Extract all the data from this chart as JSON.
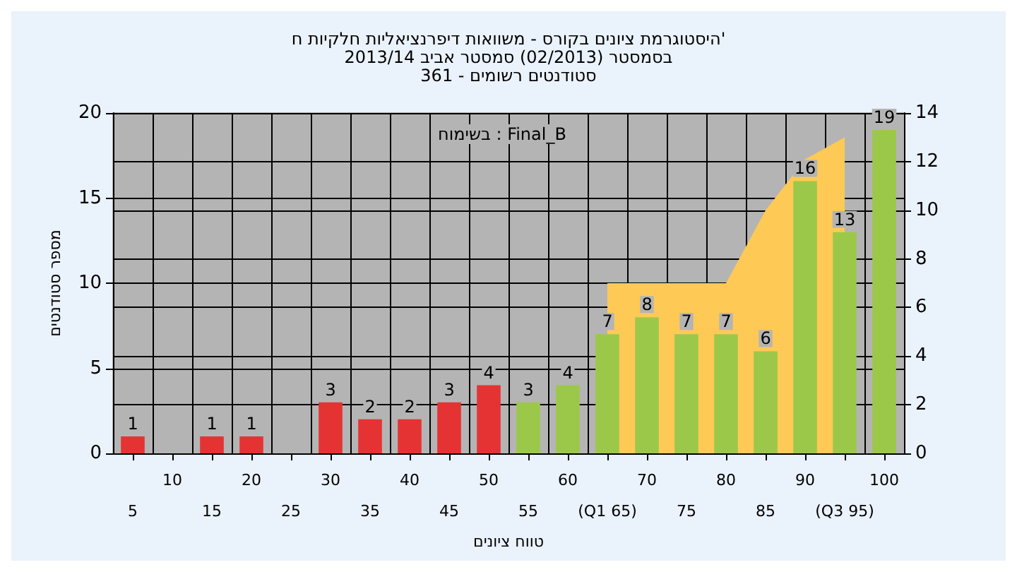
{
  "chart_data": {
    "type": "bar",
    "title": "היסטוגרמת ציונים בקורס - משוואות דיפרנציאליות חלקיות ח'",
    "subtitle": "בסמסטר (02/2013) סמסטר אביב 2013/14\nסטודנטים רשומים - 361",
    "xlabel": "טווח ציונים",
    "ylabel": "מספר סטודנטים",
    "annotations": [
      "בשימוח : Final_B"
    ],
    "categories": [
      "5",
      "10",
      "15",
      "20",
      "25",
      "30",
      "35",
      "40",
      "45",
      "50",
      "55",
      "60",
      "(Q1 65)",
      "70",
      "75",
      "80",
      "85",
      "90",
      "(Q3 95)",
      "100"
    ],
    "series": [
      {
        "values": [
          1,
          0,
          1,
          1,
          0,
          3,
          2,
          2,
          3,
          4,
          3,
          4,
          7,
          8,
          7,
          7,
          6,
          16,
          13,
          19
        ],
        "value_labels": [
          "1",
          null,
          "1",
          "1",
          null,
          "3",
          "2",
          "2",
          "3",
          "4",
          "3",
          "4",
          "7",
          "8",
          "7",
          "7",
          "6",
          "16",
          "13",
          "19"
        ],
        "colors": [
          "#e53333",
          "#e53333",
          "#e53333",
          "#e53333",
          "#e53333",
          "#e53333",
          "#e53333",
          "#e53333",
          "#e53333",
          "#e53333",
          "#9cc84a",
          "#9cc84a",
          "#9cc84a",
          "#9cc84a",
          "#9cc84a",
          "#9cc84a",
          "#9cc84a",
          "#9cc84a",
          "#9cc84a",
          "#9cc84a"
        ]
      },
      {
        "type": "area",
        "axis": "y2",
        "color": "#ffc955",
        "values": [
          null,
          null,
          null,
          null,
          null,
          null,
          null,
          null,
          null,
          null,
          null,
          null,
          7,
          7,
          7,
          7,
          10,
          12.1,
          13,
          null
        ]
      }
    ],
    "ylim": [
      0,
      20
    ],
    "yticks": [
      0,
      5,
      10,
      15,
      20
    ],
    "y2lim": [
      0,
      14
    ],
    "y2ticks": [
      0,
      2,
      4,
      6,
      8,
      10,
      12,
      14
    ],
    "grid": true
  }
}
